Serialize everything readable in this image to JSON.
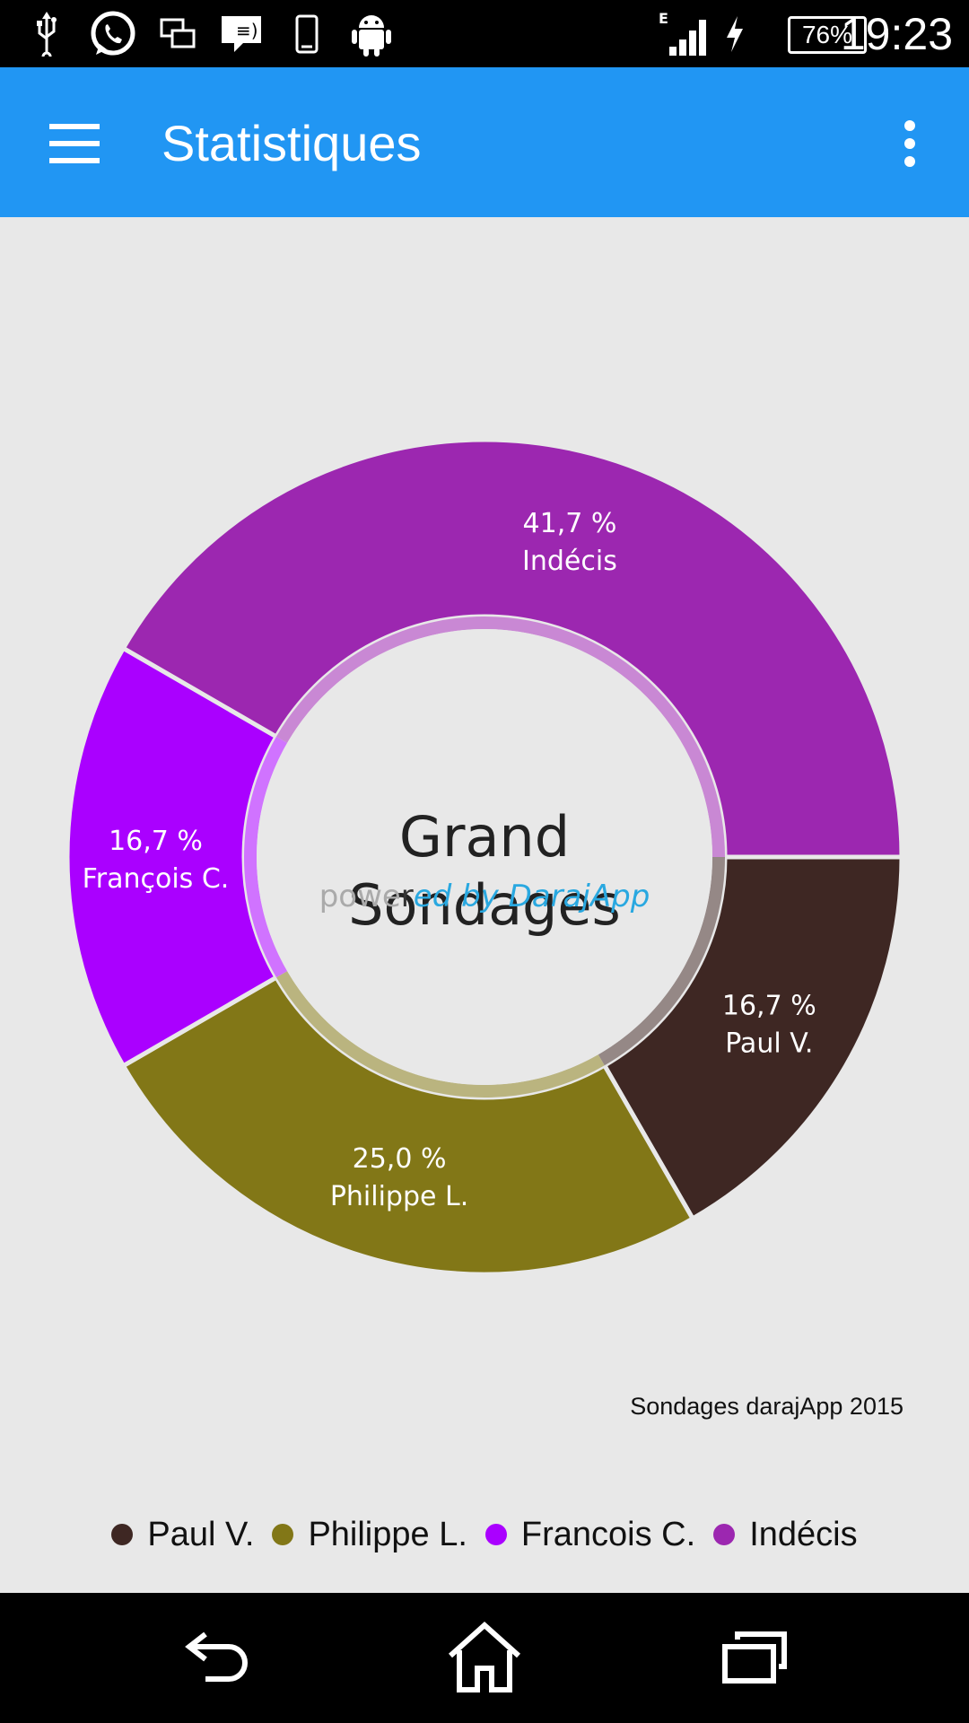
{
  "status_bar": {
    "time": "19:23",
    "battery": "76%",
    "network_type": "E",
    "icons": [
      "usb-icon",
      "whatsapp-icon",
      "screen-cast-icon",
      "message-icon",
      "phone-device-icon",
      "android-icon",
      "signal-icon",
      "charging-icon",
      "battery-icon"
    ]
  },
  "app_bar": {
    "title": "Statistiques",
    "menu_icon": "hamburger-menu-icon",
    "overflow_icon": "overflow-menu-icon",
    "color": "#2196f3"
  },
  "chart_center": {
    "title": "Grand Sondages",
    "subtitle": "powered by DarajApp"
  },
  "footer_note": "Sondages darajApp 2015",
  "chart_data": {
    "type": "pie",
    "donut": true,
    "title": "Grand Sondages",
    "subtitle": "powered by DarajApp",
    "start_angle_deg": 0,
    "slices": [
      {
        "label": "Paul V.",
        "value": 16.7,
        "display": "16,7 %",
        "color": "#3e2723"
      },
      {
        "label": "Philippe L.",
        "value": 25.0,
        "display": "25,0 %",
        "color": "#827717"
      },
      {
        "label": "François C.",
        "value": 16.7,
        "display": "16,7 %",
        "color": "#aa00ff"
      },
      {
        "label": "Indécis",
        "value": 41.7,
        "display": "41,7 %",
        "color": "#9c27b0"
      }
    ],
    "legend": {
      "placement": "bottom",
      "entries": [
        {
          "label": "Paul V.",
          "color": "#3e2723"
        },
        {
          "label": "Philippe L.",
          "color": "#827717"
        },
        {
          "label": "Francois C.",
          "color": "#aa00ff"
        },
        {
          "label": "Indécis",
          "color": "#9c27b0"
        }
      ]
    }
  },
  "nav_bar": {
    "icons": [
      "back-icon",
      "home-icon",
      "recent-apps-icon"
    ]
  }
}
